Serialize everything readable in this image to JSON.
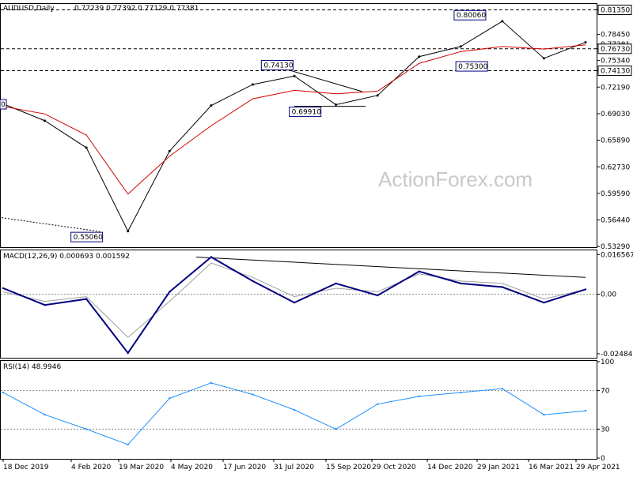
{
  "chart_data": [
    {
      "type": "line",
      "panel": "price",
      "title": "AUDUSD,Daily",
      "ohlc_text": "0.77239 0.77392 0.77129 0.77381",
      "yticks": [
        "0.81350",
        "0.78450",
        "0.77281",
        "0.76730",
        "0.75340",
        "0.74130",
        "0.72190",
        "0.69030",
        "0.65890",
        "0.62730",
        "0.59590",
        "0.56440",
        "0.53290"
      ],
      "y_tick_values": [
        0.8135,
        0.7845,
        0.7728,
        0.7673,
        0.7534,
        0.7413,
        0.7219,
        0.6903,
        0.6589,
        0.6273,
        0.5959,
        0.5644,
        0.5329
      ],
      "ylim": [
        0.532,
        0.8205
      ],
      "xticks": [
        "18 Dec 2019",
        "4 Feb 2020",
        "19 Mar 2020",
        "4 May 2020",
        "17 Jun 2020",
        "31 Jul 2020",
        "15 Sep 2020",
        "29 Oct 2020",
        "14 Dec 2020",
        "29 Jan 2021",
        "16 Mar 2021",
        "29 Apr 2021"
      ],
      "hlines": [
        0.8135,
        0.7673,
        0.7413
      ],
      "annotations": [
        "0.80060",
        "0.74130",
        "0.69910",
        "0.55060",
        "0.75300"
      ],
      "annotation_values": [
        0.8006,
        0.7413,
        0.6991,
        0.5506,
        0.753
      ],
      "edge_label": "0",
      "watermark": "ActionForex.com",
      "x": [
        "18 Dec 2019",
        "4 Feb 2020",
        "11 Mar 2020",
        "19 Mar 2020",
        "4 May 2020",
        "17 Jun 2020",
        "31 Jul 2020",
        "15 Sep 2020",
        "24 Sep 2020",
        "29 Oct 2020",
        "14 Dec 2020",
        "29 Jan 2021",
        "25 Feb 2021",
        "16 Mar 2021",
        "29 Apr 2021"
      ],
      "series": [
        {
          "values": [
            0.702,
            0.682,
            0.65,
            0.551,
            0.646,
            0.7,
            0.725,
            0.735,
            0.701,
            0.712,
            0.758,
            0.77,
            0.8,
            0.756,
            0.775
          ]
        },
        {
          "values": [
            0.699,
            0.69,
            0.665,
            0.595,
            0.64,
            0.676,
            0.708,
            0.718,
            0.714,
            0.717,
            0.75,
            0.764,
            0.77,
            0.767,
            0.772
          ]
        }
      ],
      "colors": {
        "price": "#000000",
        "ma": "#d40000"
      }
    },
    {
      "type": "line",
      "panel": "macd",
      "title": "MACD(12,26,9) 0.000693 0.001592",
      "yticks": [
        "0.016567",
        "0.00",
        "-0.02484"
      ],
      "y_tick_values": [
        0.016567,
        0,
        -0.02484
      ],
      "ylim": [
        -0.0265,
        0.0183
      ],
      "series": [
        {
          "values": [
            0.0025,
            -0.0045,
            -0.002,
            -0.0245,
            0.001,
            0.0155,
            0.0055,
            -0.0035,
            0.0045,
            -0.0005,
            0.0095,
            0.0045,
            0.003,
            -0.0035,
            0.002
          ]
        },
        {
          "values": [
            0.001,
            -0.003,
            -0.001,
            -0.018,
            -0.003,
            0.013,
            0.007,
            -0.001,
            0.0025,
            0.001,
            0.0085,
            0.0055,
            0.0045,
            -0.002,
            0.002
          ]
        }
      ],
      "colors": {
        "macd": "#000080",
        "signal": "#a0a0a0"
      }
    },
    {
      "type": "line",
      "panel": "rsi",
      "title": "RSI(14) 48.9946",
      "yticks": [
        "100",
        "70",
        "30",
        "0"
      ],
      "ylim": [
        0,
        100
      ],
      "levels": [
        70,
        30
      ],
      "series": [
        {
          "values": [
            68,
            45,
            30,
            14,
            62,
            78,
            66,
            50,
            30,
            56,
            64,
            68,
            72,
            45,
            49
          ]
        }
      ],
      "colors": {
        "rsi": "#1e90ff"
      }
    }
  ]
}
